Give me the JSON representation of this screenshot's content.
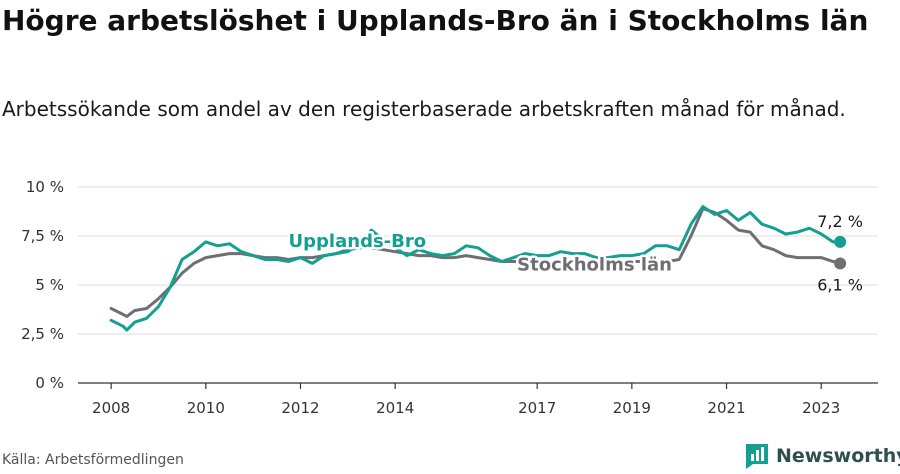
{
  "title": "Högre arbetslöshet i Upplands-Bro än i Stockholms län",
  "subtitle": "Arbetssökande som andel av den registerbaserade arbetskraften månad för månad.",
  "source": "Källa: Arbetsförmedlingen",
  "brand": {
    "name": "Newsworthy",
    "icon": "newsworthy-logo-icon"
  },
  "colors": {
    "upplands": "#14a090",
    "stockholm": "#6e6e73",
    "grid": "#dedede",
    "axis": "#333333"
  },
  "chart_data": {
    "type": "line",
    "title": "Högre arbetslöshet i Upplands-Bro än i Stockholms län",
    "xlabel": "",
    "ylabel": "",
    "ylim": [
      0,
      10
    ],
    "xlim": [
      2007.3,
      2024.2
    ],
    "y_ticks": [
      0,
      2.5,
      5,
      7.5,
      10
    ],
    "y_tick_labels": [
      "0 %",
      "2,5 %",
      "5 %",
      "7,5 %",
      "10 %"
    ],
    "x_ticks": [
      2008,
      2010,
      2012,
      2014,
      2017,
      2019,
      2021,
      2023
    ],
    "x_tick_labels": [
      "2008",
      "2010",
      "2012",
      "2014",
      "2017",
      "2019",
      "2021",
      "2023"
    ],
    "grid": true,
    "series": [
      {
        "name": "Upplands-Bro",
        "label": "Upplands-Bro",
        "last_label": "7,2 %",
        "x": [
          2008.0,
          2008.25,
          2008.33,
          2008.5,
          2008.75,
          2009.0,
          2009.25,
          2009.5,
          2009.75,
          2010.0,
          2010.25,
          2010.5,
          2010.75,
          2011.0,
          2011.25,
          2011.5,
          2011.75,
          2012.0,
          2012.25,
          2012.5,
          2012.75,
          2013.0,
          2013.25,
          2013.5,
          2013.75,
          2014.0,
          2014.25,
          2014.5,
          2014.75,
          2015.0,
          2015.25,
          2015.5,
          2015.75,
          2016.0,
          2016.25,
          2016.5,
          2016.75,
          2017.0,
          2017.25,
          2017.5,
          2017.75,
          2018.0,
          2018.25,
          2018.5,
          2018.75,
          2019.0,
          2019.25,
          2019.5,
          2019.75,
          2020.0,
          2020.25,
          2020.5,
          2020.75,
          2021.0,
          2021.25,
          2021.5,
          2021.75,
          2022.0,
          2022.25,
          2022.5,
          2022.75,
          2023.0,
          2023.25,
          2023.4
        ],
        "values": [
          3.2,
          2.9,
          2.7,
          3.1,
          3.3,
          3.9,
          4.9,
          6.3,
          6.7,
          7.2,
          7.0,
          7.1,
          6.7,
          6.5,
          6.3,
          6.3,
          6.2,
          6.4,
          6.1,
          6.5,
          6.6,
          6.7,
          7.1,
          7.8,
          7.3,
          6.9,
          6.5,
          6.8,
          6.6,
          6.5,
          6.6,
          7.0,
          6.9,
          6.5,
          6.2,
          6.4,
          6.6,
          6.5,
          6.5,
          6.7,
          6.6,
          6.6,
          6.4,
          6.4,
          6.5,
          6.5,
          6.6,
          7.0,
          7.0,
          6.8,
          8.1,
          9.0,
          8.6,
          8.8,
          8.3,
          8.7,
          8.1,
          7.9,
          7.6,
          7.7,
          7.9,
          7.6,
          7.2,
          7.2
        ]
      },
      {
        "name": "Stockholms län",
        "label": "Stockholms län",
        "last_label": "6,1 %",
        "x": [
          2008.0,
          2008.25,
          2008.33,
          2008.5,
          2008.75,
          2009.0,
          2009.25,
          2009.5,
          2009.75,
          2010.0,
          2010.25,
          2010.5,
          2010.75,
          2011.0,
          2011.25,
          2011.5,
          2011.75,
          2012.0,
          2012.25,
          2012.5,
          2012.75,
          2013.0,
          2013.25,
          2013.5,
          2013.75,
          2014.0,
          2014.25,
          2014.5,
          2014.75,
          2015.0,
          2015.25,
          2015.5,
          2015.75,
          2016.0,
          2016.25,
          2016.5,
          2016.75,
          2017.0,
          2017.25,
          2017.5,
          2017.75,
          2018.0,
          2018.25,
          2018.5,
          2018.75,
          2019.0,
          2019.25,
          2019.5,
          2019.75,
          2020.0,
          2020.25,
          2020.5,
          2020.75,
          2021.0,
          2021.25,
          2021.5,
          2021.75,
          2022.0,
          2022.25,
          2022.5,
          2022.75,
          2023.0,
          2023.25,
          2023.4
        ],
        "values": [
          3.8,
          3.5,
          3.4,
          3.7,
          3.8,
          4.3,
          4.9,
          5.6,
          6.1,
          6.4,
          6.5,
          6.6,
          6.6,
          6.5,
          6.4,
          6.4,
          6.3,
          6.4,
          6.4,
          6.5,
          6.6,
          6.8,
          6.9,
          6.9,
          6.8,
          6.7,
          6.6,
          6.5,
          6.5,
          6.4,
          6.4,
          6.5,
          6.4,
          6.3,
          6.2,
          6.2,
          6.2,
          6.2,
          6.1,
          6.1,
          6.1,
          6.1,
          6.1,
          6.1,
          6.2,
          6.2,
          6.2,
          6.2,
          6.2,
          6.3,
          7.5,
          8.9,
          8.7,
          8.3,
          7.8,
          7.7,
          7.0,
          6.8,
          6.5,
          6.4,
          6.4,
          6.4,
          6.2,
          6.1
        ]
      }
    ]
  }
}
